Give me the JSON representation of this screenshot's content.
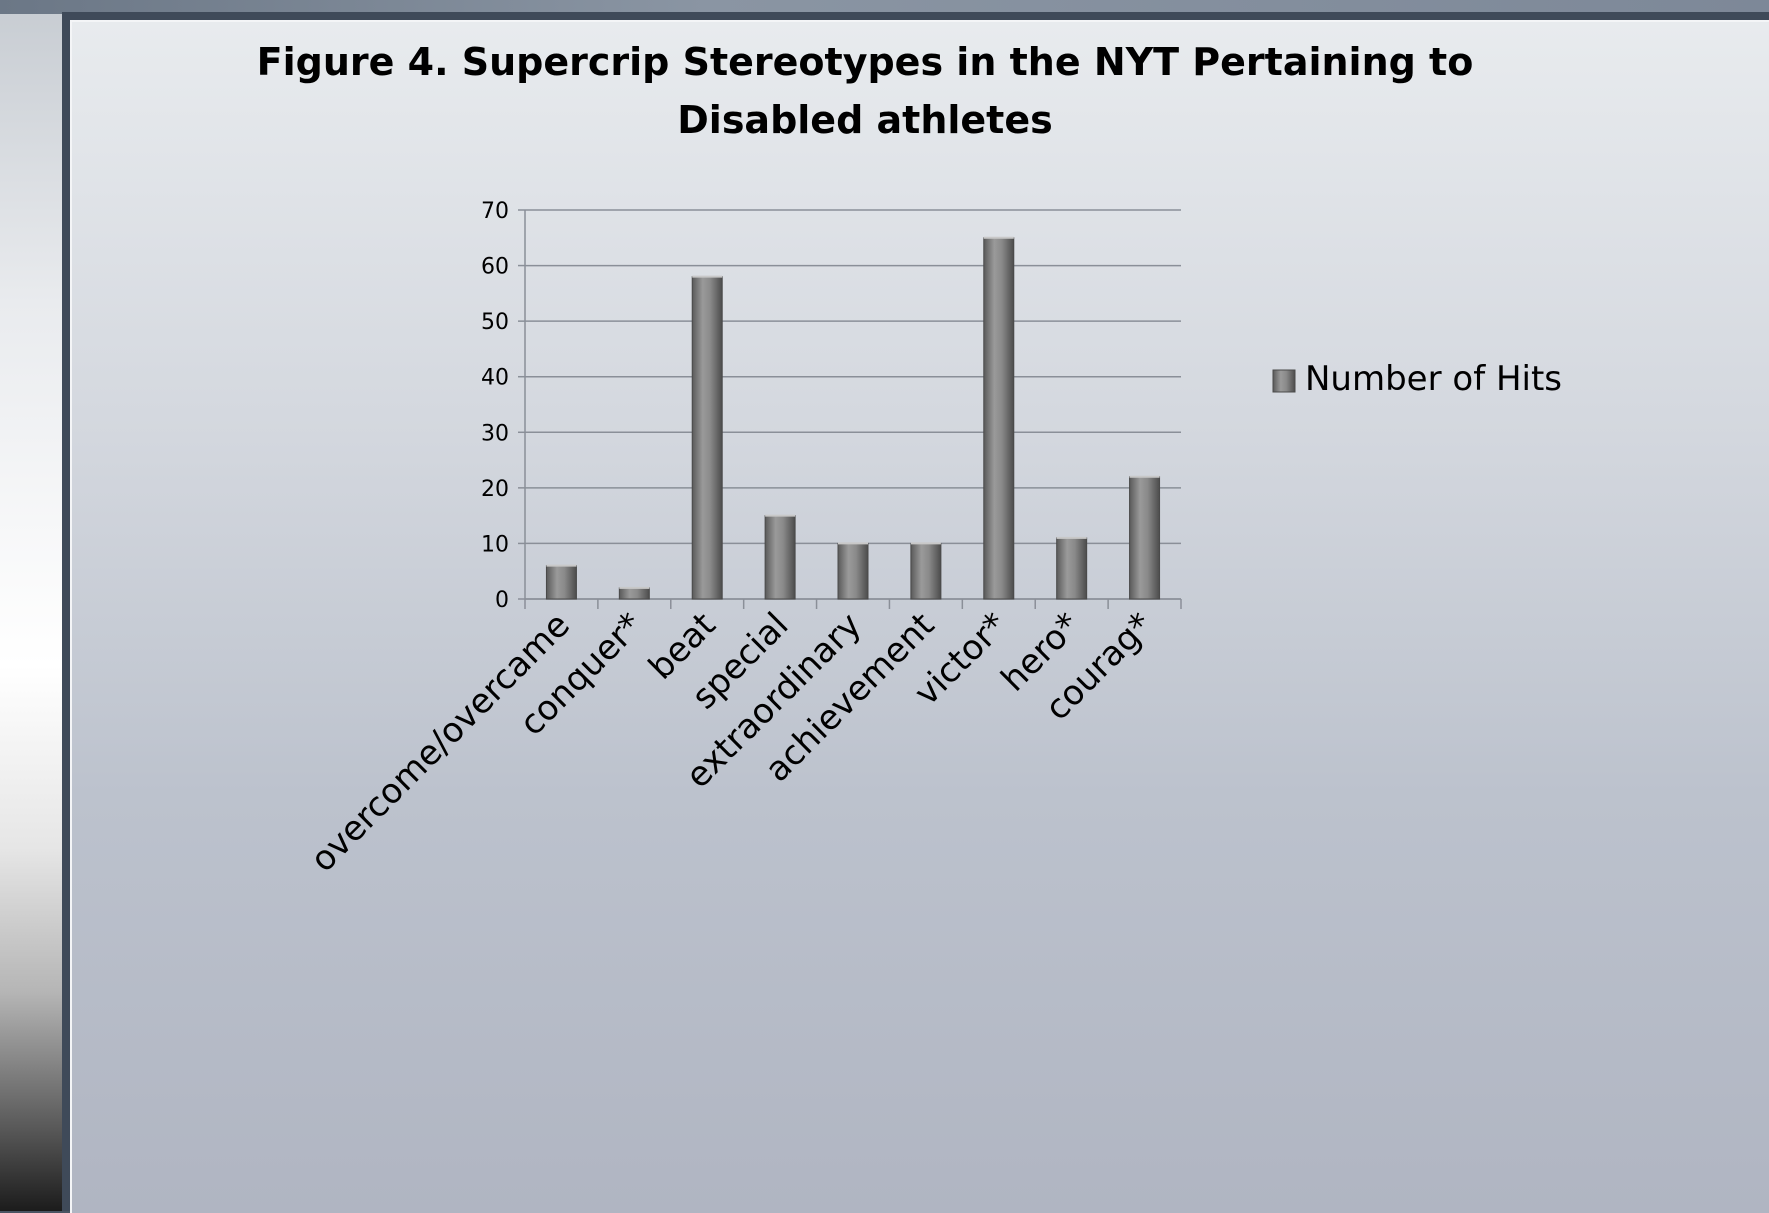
{
  "chart_data": {
    "type": "bar",
    "title": "Figure 4. Supercrip Stereotypes in the NYT Pertaining to Disabled athletes",
    "title_lines": [
      "Figure 4. Supercrip Stereotypes in the NYT Pertaining to",
      "Disabled athletes"
    ],
    "categories": [
      "overcome/overcame",
      "conquer*",
      "beat",
      "special",
      "extraordinary",
      "achievement",
      "victor*",
      "hero*",
      "courag*"
    ],
    "series": [
      {
        "name": "Number of Hits",
        "values": [
          6,
          2,
          58,
          15,
          10,
          10,
          65,
          11,
          22
        ]
      }
    ],
    "ylim": [
      0,
      70
    ],
    "yticks": [
      "0",
      "10",
      "20",
      "30",
      "40",
      "50",
      "60",
      "70"
    ],
    "grid": true,
    "legend_position": "right",
    "bar_color": "#6f6f6f"
  }
}
